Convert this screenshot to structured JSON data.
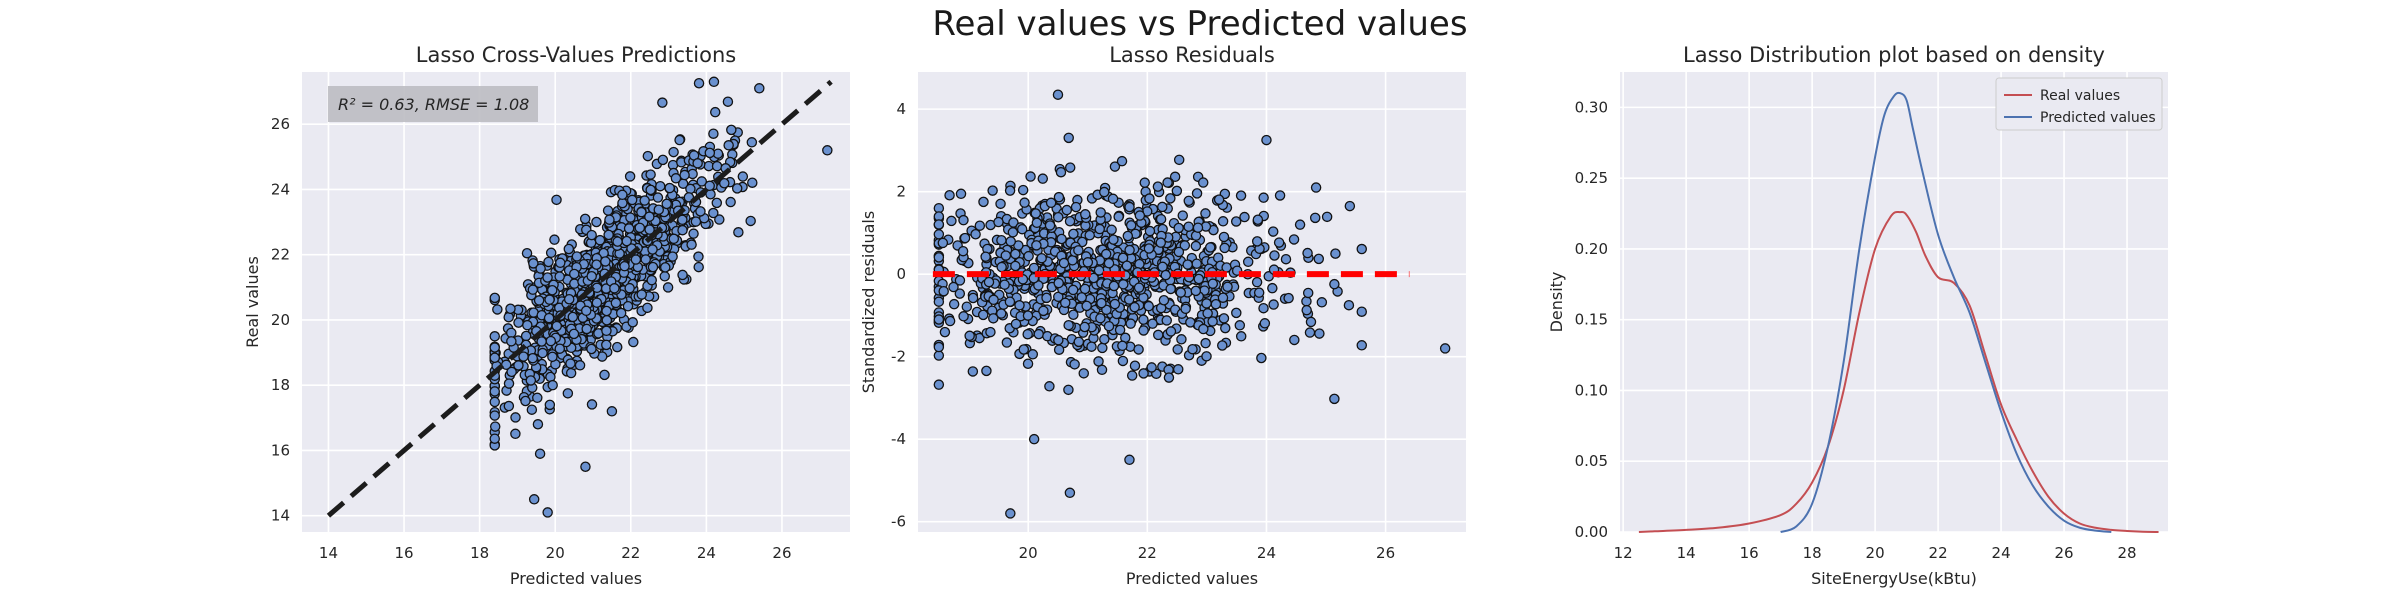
{
  "suptitle": "Real values vs Predicted values",
  "colors": {
    "panel_bg": "#eaeaf2",
    "grid": "#ffffff",
    "point_fill": "#6a91cf",
    "point_edge": "#111111",
    "diag_line": "#1c1c1c",
    "zero_line": "#ff0000",
    "real_curve": "#c44e52",
    "pred_curve": "#4c72b0",
    "annot_box": "#bdbdc2",
    "text": "#262626"
  },
  "chart_data": [
    {
      "type": "scatter",
      "title": "Lasso Cross-Values Predictions",
      "xlabel": "Predicted values",
      "ylabel": "Real values",
      "xlim": [
        13.3,
        27.8
      ],
      "ylim": [
        13.5,
        27.6
      ],
      "xticks": [
        14,
        16,
        18,
        20,
        22,
        24,
        26
      ],
      "yticks": [
        14,
        16,
        18,
        20,
        22,
        24,
        26
      ],
      "grid": true,
      "annotation": "R² = 0.63, RMSE = 1.08",
      "reference_line": {
        "style": "dashed",
        "x": [
          14.0,
          27.3
        ],
        "y": [
          14.0,
          27.3
        ]
      },
      "points": {
        "n": 1000,
        "x_center": 21.3,
        "x_spread": 1.5,
        "x_min": 18.4,
        "x_max": 25.5,
        "noise_sd": 1.05,
        "slope": 1.0,
        "outliers": [
          [
            19.8,
            14.1
          ],
          [
            24.2,
            27.3
          ],
          [
            25.4,
            27.1
          ],
          [
            27.2,
            25.2
          ],
          [
            21.5,
            17.2
          ],
          [
            20.8,
            15.5
          ],
          [
            19.6,
            15.9
          ]
        ]
      }
    },
    {
      "type": "scatter",
      "title": "Lasso Residuals",
      "xlabel": "Predicted values",
      "ylabel": "Standardized residuals",
      "xlim": [
        18.15,
        27.35
      ],
      "ylim": [
        -6.25,
        4.9
      ],
      "xticks": [
        20,
        22,
        24,
        26
      ],
      "yticks": [
        -6,
        -4,
        -2,
        0,
        2,
        4
      ],
      "grid": true,
      "reference_line": {
        "style": "dashed",
        "x": [
          18.4,
          26.4
        ],
        "y": [
          0,
          0
        ]
      },
      "points": {
        "n": 1000,
        "x_center": 21.3,
        "x_spread": 1.5,
        "x_min": 18.5,
        "x_max": 25.6,
        "noise_sd": 1.0,
        "outliers": [
          [
            20.5,
            4.35
          ],
          [
            19.7,
            -5.8
          ],
          [
            20.7,
            -5.3
          ],
          [
            21.7,
            -4.5
          ],
          [
            20.1,
            -4.0
          ],
          [
            27.0,
            -1.8
          ],
          [
            25.4,
            1.65
          ],
          [
            24.0,
            3.25
          ]
        ]
      }
    },
    {
      "type": "line",
      "title": "Lasso Distribution plot based on density",
      "xlabel": "SiteEnergyUse(kBtu)",
      "ylabel": "Density",
      "xlim": [
        11.9,
        29.3
      ],
      "ylim": [
        0,
        0.325
      ],
      "xticks": [
        12,
        14,
        16,
        18,
        20,
        22,
        24,
        26,
        28
      ],
      "yticks": [
        0.0,
        0.05,
        0.1,
        0.15,
        0.2,
        0.25,
        0.3
      ],
      "grid": true,
      "legend_position": "top-right",
      "series": [
        {
          "name": "Real values",
          "x": [
            12.5,
            13.0,
            14.0,
            15.0,
            16.0,
            17.0,
            17.5,
            18.0,
            18.5,
            19.0,
            19.5,
            20.0,
            20.5,
            20.8,
            21.0,
            21.3,
            21.6,
            22.0,
            22.5,
            23.0,
            23.5,
            24.0,
            24.5,
            25.0,
            25.5,
            26.0,
            26.5,
            27.0,
            27.5,
            28.0,
            28.5,
            29.0
          ],
          "y": [
            0.0,
            0.0005,
            0.0015,
            0.003,
            0.006,
            0.012,
            0.02,
            0.035,
            0.06,
            0.1,
            0.155,
            0.2,
            0.223,
            0.226,
            0.224,
            0.212,
            0.195,
            0.18,
            0.176,
            0.16,
            0.125,
            0.09,
            0.065,
            0.043,
            0.025,
            0.013,
            0.006,
            0.003,
            0.0015,
            0.0007,
            0.0002,
            0.0
          ]
        },
        {
          "name": "Predicted values",
          "x": [
            17.0,
            17.5,
            18.0,
            18.5,
            19.0,
            19.5,
            20.0,
            20.3,
            20.6,
            20.8,
            21.0,
            21.2,
            21.5,
            22.0,
            22.5,
            23.0,
            23.5,
            24.0,
            24.5,
            25.0,
            25.5,
            26.0,
            26.5,
            27.0,
            27.5
          ],
          "y": [
            0.0,
            0.004,
            0.02,
            0.06,
            0.12,
            0.2,
            0.265,
            0.295,
            0.308,
            0.31,
            0.305,
            0.285,
            0.255,
            0.21,
            0.18,
            0.155,
            0.12,
            0.085,
            0.055,
            0.033,
            0.018,
            0.008,
            0.003,
            0.001,
            0.0
          ]
        }
      ]
    }
  ]
}
